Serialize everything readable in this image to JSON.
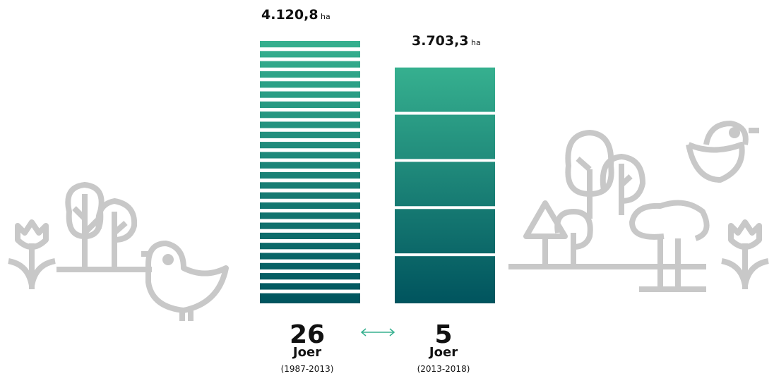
{
  "chart_data": {
    "type": "bar",
    "values": [
      4120.8,
      3703.3
    ],
    "value_labels": [
      "4.120,8",
      "3.703,3"
    ],
    "value_units": [
      "ha",
      "ha"
    ],
    "years": [
      26,
      5
    ],
    "year_labels": [
      "Joer",
      "Joer"
    ],
    "periods": [
      "(1987-2013)",
      "(2013-2018)"
    ],
    "color_top": "#36b08f",
    "color_bottom": "#00545e"
  }
}
